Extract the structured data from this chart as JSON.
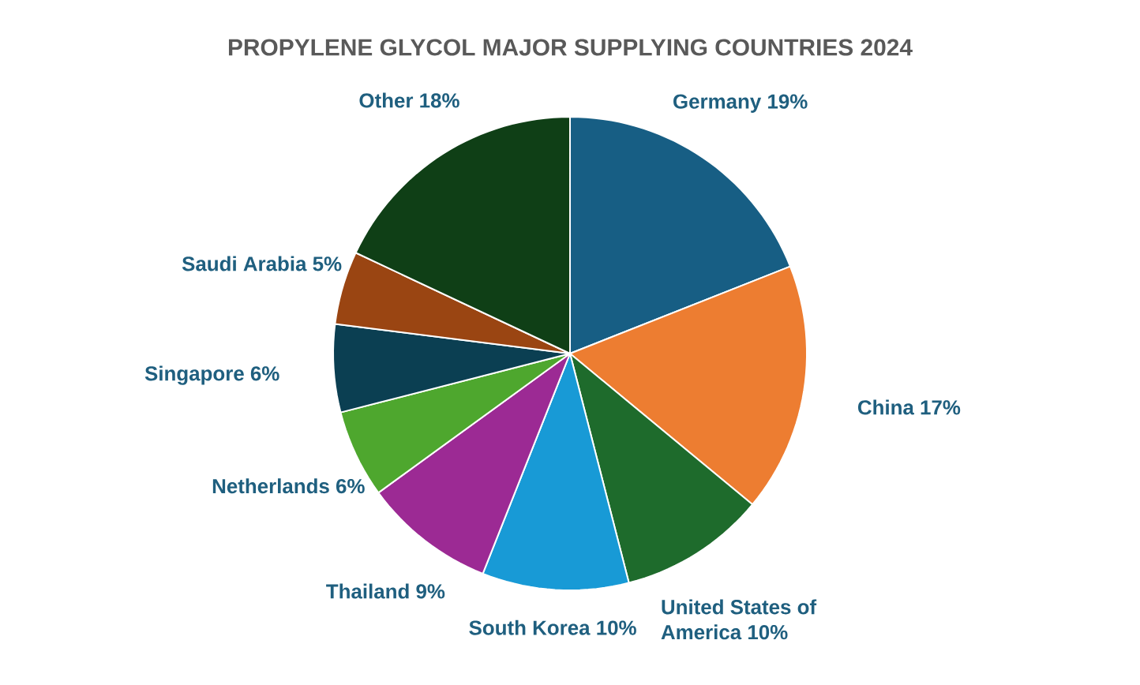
{
  "chart_data": {
    "type": "pie",
    "title": "PROPYLENE GLYCOL MAJOR SUPPLYING COUNTRIES 2024",
    "categories": [
      "Germany",
      "China",
      "United States of America",
      "South Korea",
      "Thailand",
      "Netherlands",
      "Singapore",
      "Saudi Arabia",
      "Other"
    ],
    "values": [
      19,
      17,
      10,
      10,
      9,
      6,
      6,
      5,
      18
    ],
    "value_labels": [
      "19%",
      "17%",
      "10%",
      "10%",
      "9%",
      "6%",
      "6%",
      "5%",
      "18%"
    ],
    "colors": [
      "#175e84",
      "#ed7d31",
      "#1e6b2c",
      "#189ad6",
      "#9c2a94",
      "#4ea72e",
      "#0b3f52",
      "#9a4512",
      "#0f3f16"
    ]
  }
}
